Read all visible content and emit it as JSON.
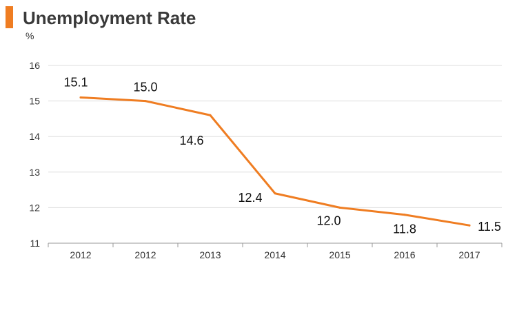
{
  "header": {
    "title": "Unemployment Rate",
    "accent_color": "#ef7d22"
  },
  "chart_data": {
    "type": "line",
    "title": "Unemployment Rate",
    "xlabel": "",
    "ylabel": "%",
    "categories": [
      "2012",
      "2012",
      "2013",
      "2014",
      "2015",
      "2016",
      "2017"
    ],
    "series": [
      {
        "values": [
          15.1,
          15.0,
          14.6,
          12.4,
          12.0,
          11.8,
          11.5
        ],
        "color": "#ef7d22"
      }
    ],
    "data_labels": [
      "15.1",
      "15.0",
      "14.6",
      "12.4",
      "12.0",
      "11.8",
      "11.5"
    ],
    "yticks": [
      "11",
      "12",
      "13",
      "14",
      "15",
      "16"
    ],
    "ylim": [
      11,
      16
    ],
    "grid": true,
    "legend": "none"
  }
}
